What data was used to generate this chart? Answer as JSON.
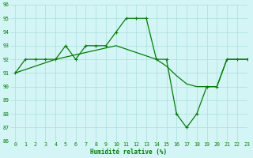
{
  "line1_x": [
    0,
    1,
    2,
    3,
    4,
    5,
    6,
    7,
    8,
    9,
    10,
    11,
    12,
    13,
    14,
    15,
    16,
    17,
    18,
    19,
    20,
    21,
    22,
    23
  ],
  "line1_y": [
    91,
    92,
    92,
    92,
    92,
    93,
    92,
    93,
    93,
    93,
    94,
    95,
    95,
    95,
    92,
    92,
    88,
    87,
    88,
    90,
    90,
    92,
    92,
    92
  ],
  "line2_x": [
    0,
    4,
    10,
    14,
    15,
    16,
    17,
    18,
    19,
    20,
    21,
    22,
    23
  ],
  "line2_y": [
    91,
    92,
    93,
    92,
    91.5,
    90.8,
    90.2,
    90,
    90,
    90,
    92,
    92,
    92
  ],
  "line_color": "#008000",
  "marker": "+",
  "bg_color": "#d4f5f5",
  "grid_color": "#aadddd",
  "xlabel": "Humidité relative (%)",
  "xlabel_color": "#008000",
  "tick_color": "#008000",
  "ylim": [
    86,
    96
  ],
  "xlim": [
    -0.5,
    23
  ],
  "yticks": [
    86,
    87,
    88,
    89,
    90,
    91,
    92,
    93,
    94,
    95,
    96
  ],
  "xticks": [
    0,
    1,
    2,
    3,
    4,
    5,
    6,
    7,
    8,
    9,
    10,
    11,
    12,
    13,
    14,
    15,
    16,
    17,
    18,
    19,
    20,
    21,
    22,
    23
  ],
  "xtick_labels": [
    "0",
    "1",
    "2",
    "3",
    "4",
    "5",
    "6",
    "7",
    "8",
    "9",
    "10",
    "11",
    "12",
    "13",
    "14",
    "15",
    "16",
    "17",
    "18",
    "19",
    "20",
    "21",
    "22",
    "23"
  ]
}
